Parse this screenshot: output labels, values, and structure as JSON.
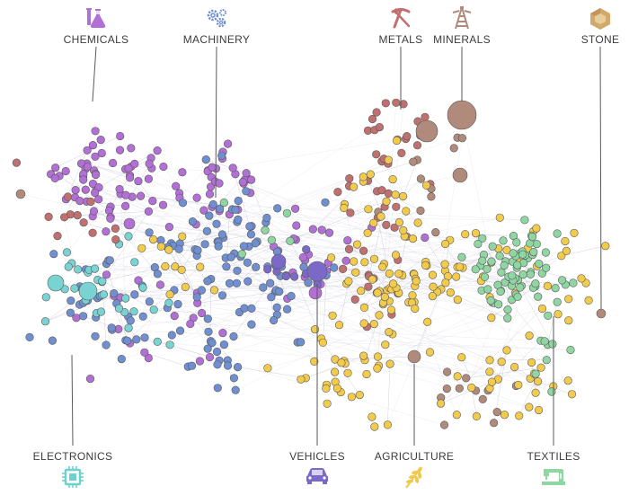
{
  "categories": {
    "top": [
      {
        "key": "chemicals",
        "label": "CHEMICALS",
        "color": "#b26fd6",
        "icon": "flask-icon"
      },
      {
        "key": "machinery",
        "label": "MACHINERY",
        "color": "#6f8fd0",
        "icon": "gears-icon"
      },
      {
        "key": "metals",
        "label": "METALS",
        "color": "#c0706e",
        "icon": "pickaxe-icon"
      },
      {
        "key": "minerals",
        "label": "MINERALS",
        "color": "#b08a7a",
        "icon": "oil-derrick-icon"
      },
      {
        "key": "stone",
        "label": "STONE",
        "color": "#d2a96a",
        "icon": "gem-icon"
      }
    ],
    "bottom": [
      {
        "key": "electronics",
        "label": "ELECTRONICS",
        "color": "#7ad3d3",
        "icon": "chip-icon"
      },
      {
        "key": "vehicles",
        "label": "VEHICLES",
        "color": "#7b69c8",
        "icon": "car-icon"
      },
      {
        "key": "agriculture",
        "label": "AGRICULTURE",
        "color": "#f0c84a",
        "icon": "wheat-icon"
      },
      {
        "key": "textiles",
        "label": "TEXTILES",
        "color": "#8fd6a3",
        "icon": "sewing-machine-icon"
      }
    ]
  },
  "colors": {
    "chemicals": "#b26fd6",
    "machinery": "#6f8fd0",
    "metals": "#c0706e",
    "minerals": "#b08a7a",
    "stone": "#d2a96a",
    "electronics": "#7ad3d3",
    "vehicles": "#7b69c8",
    "agriculture": "#f2cb4c",
    "textiles": "#8fd6a3",
    "edge": "#c9c6d6",
    "node_stroke": "#5a5a5a",
    "leader": "#5a5a5a"
  }
}
